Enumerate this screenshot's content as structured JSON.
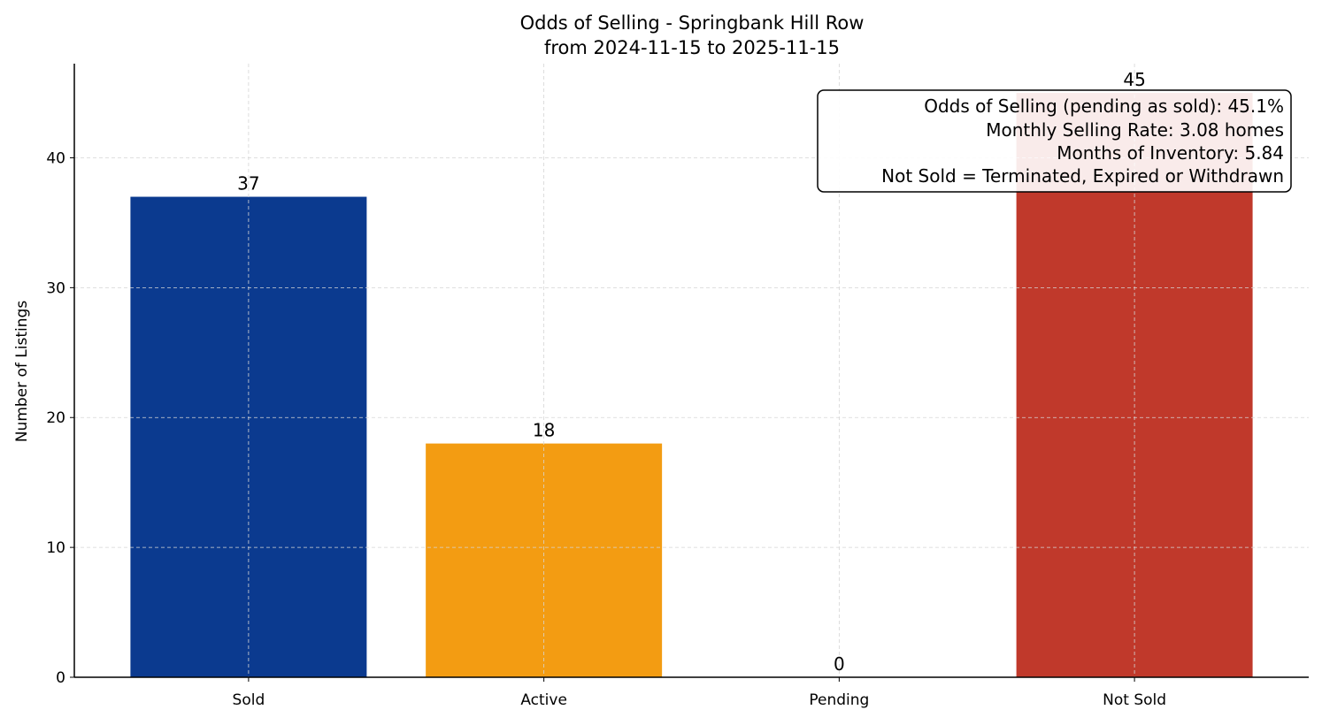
{
  "chart_data": {
    "type": "bar",
    "title": "Odds of Selling - Springbank Hill Row",
    "subtitle": "from 2024-11-15 to 2025-11-15",
    "xlabel": "",
    "ylabel": "Number of Listings",
    "categories": [
      "Sold",
      "Active",
      "Pending",
      "Not Sold"
    ],
    "values": [
      37,
      18,
      0,
      45
    ],
    "data_labels": [
      "37",
      "18",
      "0",
      "45"
    ],
    "colors": [
      "#0b3a8f",
      "#f39c12",
      "#7f8c8d",
      "#c0392b"
    ],
    "ylim": [
      0,
      47.25
    ],
    "yticks": [
      0,
      10,
      20,
      30,
      40
    ],
    "grid": true,
    "annotation": {
      "placement": "top-right",
      "lines": [
        "Odds of Selling (pending as sold): 45.1%",
        "Monthly Selling Rate: 3.08 homes",
        "Months of Inventory: 5.84",
        "Not Sold = Terminated, Expired or Withdrawn"
      ]
    }
  }
}
